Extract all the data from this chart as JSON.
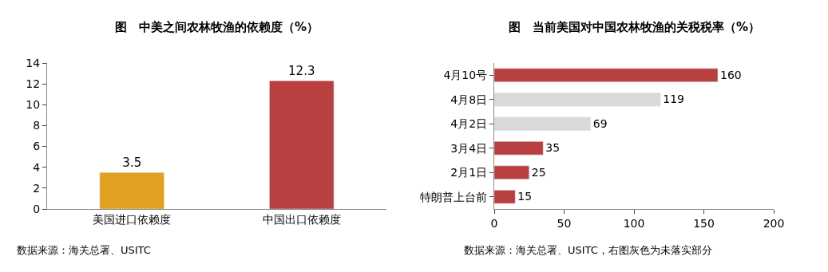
{
  "chart_data": [
    {
      "type": "bar",
      "title": "图　中美之间农林牧渔的依赖度（%）",
      "categories": [
        "美国进口依赖度",
        "中国出口依赖度"
      ],
      "values": [
        3.5,
        12.3
      ],
      "colors": [
        "#e0a020",
        "#b94040"
      ],
      "ylim": [
        0,
        14
      ],
      "yticks": [
        0,
        2,
        4,
        6,
        8,
        10,
        12,
        14
      ],
      "data_labels": true,
      "annotations": [
        "数据来源：海关总署、USITC"
      ]
    },
    {
      "type": "bar",
      "orientation": "horizontal",
      "title": "图　当前美国对中国农林牧渔的关税税率（%）",
      "categories": [
        "4月10号",
        "4月8日",
        "4月2日",
        "3月4日",
        "2月1日",
        "特朗普上台前"
      ],
      "values": [
        160,
        119,
        69,
        35,
        25,
        15
      ],
      "colors": [
        "#b94040",
        "#d9d9d9",
        "#d9d9d9",
        "#b94040",
        "#b94040",
        "#b94040"
      ],
      "xlim": [
        0,
        200
      ],
      "xticks": [
        0,
        50,
        100,
        150,
        200
      ],
      "data_labels": true,
      "annotations": [
        "数据来源：海关总署、USITC，右图灰色为未落实部分"
      ]
    }
  ]
}
